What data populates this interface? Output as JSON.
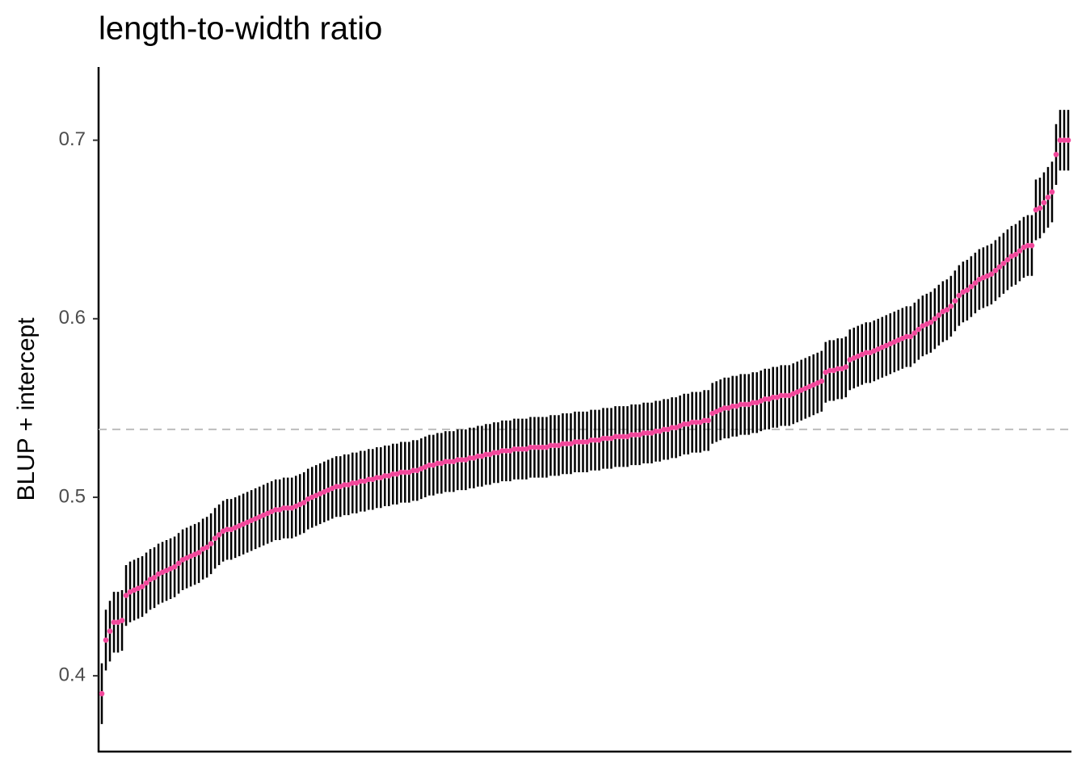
{
  "chart_data": {
    "type": "errorbar",
    "title": "length-to-width ratio",
    "y_label": "BLUP + intercept",
    "ylim": [
      0.358,
      0.741
    ],
    "yticks": [
      0.4,
      0.5,
      0.6,
      0.7
    ],
    "hline": 0.538,
    "color": "#f2479b",
    "error_color": "#000000",
    "error": 0.017,
    "values": [
      0.39,
      0.42,
      0.425,
      0.43,
      0.43,
      0.431,
      0.445,
      0.447,
      0.448,
      0.449,
      0.45,
      0.452,
      0.454,
      0.455,
      0.457,
      0.458,
      0.459,
      0.46,
      0.461,
      0.463,
      0.465,
      0.466,
      0.467,
      0.468,
      0.469,
      0.471,
      0.472,
      0.474,
      0.477,
      0.479,
      0.481,
      0.482,
      0.482,
      0.483,
      0.484,
      0.485,
      0.486,
      0.487,
      0.488,
      0.489,
      0.49,
      0.491,
      0.492,
      0.493,
      0.493,
      0.494,
      0.494,
      0.494,
      0.495,
      0.496,
      0.497,
      0.499,
      0.5,
      0.501,
      0.502,
      0.503,
      0.504,
      0.505,
      0.506,
      0.506,
      0.507,
      0.507,
      0.508,
      0.508,
      0.509,
      0.509,
      0.51,
      0.51,
      0.511,
      0.511,
      0.512,
      0.512,
      0.513,
      0.513,
      0.514,
      0.514,
      0.514,
      0.515,
      0.515,
      0.516,
      0.517,
      0.518,
      0.518,
      0.519,
      0.519,
      0.52,
      0.52,
      0.52,
      0.521,
      0.521,
      0.521,
      0.522,
      0.522,
      0.523,
      0.523,
      0.524,
      0.524,
      0.525,
      0.525,
      0.526,
      0.526,
      0.526,
      0.527,
      0.527,
      0.527,
      0.527,
      0.528,
      0.528,
      0.528,
      0.528,
      0.528,
      0.529,
      0.529,
      0.529,
      0.53,
      0.53,
      0.53,
      0.531,
      0.531,
      0.531,
      0.531,
      0.532,
      0.532,
      0.532,
      0.533,
      0.533,
      0.533,
      0.534,
      0.534,
      0.534,
      0.534,
      0.535,
      0.535,
      0.535,
      0.536,
      0.536,
      0.536,
      0.537,
      0.537,
      0.538,
      0.538,
      0.539,
      0.539,
      0.54,
      0.541,
      0.541,
      0.542,
      0.542,
      0.542,
      0.543,
      0.543,
      0.547,
      0.548,
      0.549,
      0.55,
      0.55,
      0.551,
      0.551,
      0.552,
      0.552,
      0.552,
      0.553,
      0.553,
      0.554,
      0.555,
      0.555,
      0.556,
      0.556,
      0.557,
      0.557,
      0.557,
      0.558,
      0.559,
      0.56,
      0.561,
      0.562,
      0.563,
      0.564,
      0.565,
      0.57,
      0.571,
      0.571,
      0.572,
      0.572,
      0.573,
      0.577,
      0.578,
      0.579,
      0.58,
      0.581,
      0.581,
      0.582,
      0.583,
      0.584,
      0.585,
      0.586,
      0.587,
      0.588,
      0.589,
      0.59,
      0.59,
      0.592,
      0.594,
      0.596,
      0.597,
      0.598,
      0.6,
      0.602,
      0.604,
      0.605,
      0.607,
      0.61,
      0.613,
      0.615,
      0.616,
      0.618,
      0.62,
      0.622,
      0.623,
      0.624,
      0.625,
      0.627,
      0.629,
      0.631,
      0.633,
      0.635,
      0.636,
      0.638,
      0.64,
      0.641,
      0.641,
      0.661,
      0.662,
      0.665,
      0.668,
      0.671,
      0.692,
      0.7,
      0.7,
      0.7
    ]
  }
}
